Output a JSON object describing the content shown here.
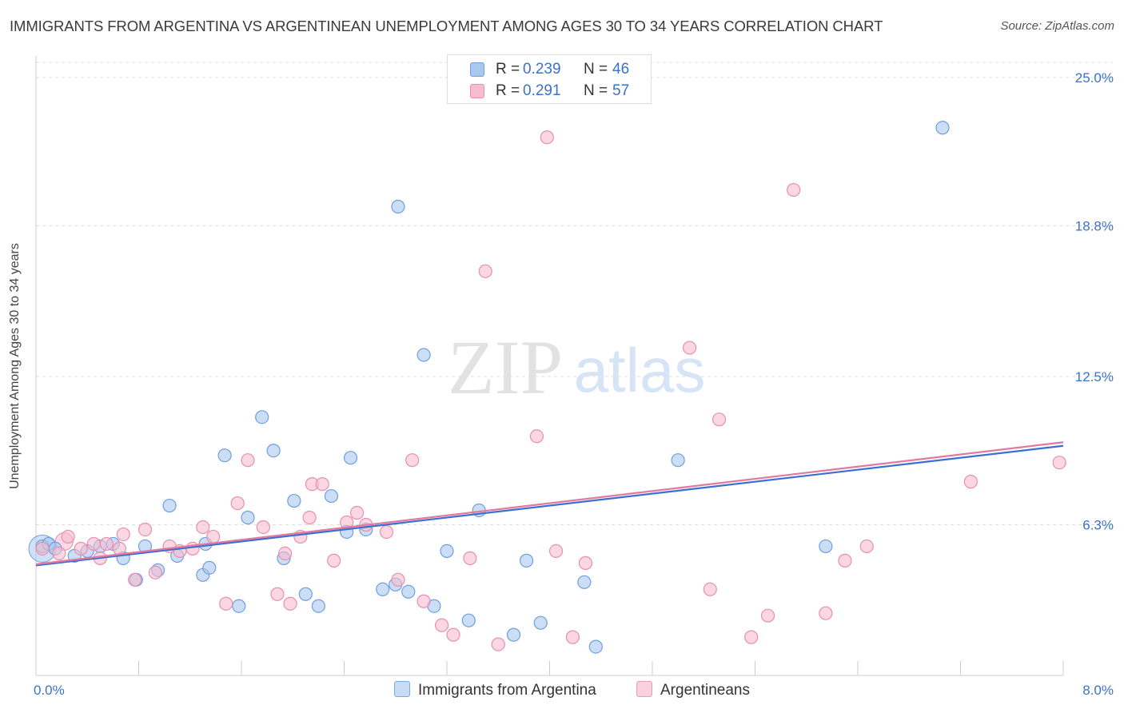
{
  "title": "IMMIGRANTS FROM ARGENTINA VS ARGENTINEAN UNEMPLOYMENT AMONG AGES 30 TO 34 YEARS CORRELATION CHART",
  "source": "Source: ZipAtlas.com",
  "watermark": {
    "zip": "ZIP",
    "atlas": "atlas"
  },
  "colors": {
    "blue_fill": "#a9c8f0",
    "blue_stroke": "#6f9fdd",
    "blue_line": "#3b6fd0",
    "pink_fill": "#f6bcd0",
    "pink_stroke": "#e88fae",
    "pink_line": "#e07aa0",
    "axis_label": "#3b72c8",
    "grid": "#dddddd"
  },
  "legend": {
    "series": [
      {
        "r_label": "R =",
        "r_value": "0.239",
        "n_label": "N =",
        "n_value": "46"
      },
      {
        "r_label": "R =",
        "r_value": "0.291",
        "n_label": "N =",
        "n_value": "57"
      }
    ]
  },
  "chart_data": {
    "type": "scatter",
    "title": "IMMIGRANTS FROM ARGENTINA VS ARGENTINEAN UNEMPLOYMENT AMONG AGES 30 TO 34 YEARS CORRELATION CHART",
    "xlabel": "",
    "ylabel": "Unemployment Among Ages 30 to 34 years",
    "xlim": [
      0,
      8
    ],
    "ylim": [
      0,
      25.9
    ],
    "x_tick_labels": [
      "0.0%",
      "8.0%"
    ],
    "y_ticks": [
      6.3,
      12.5,
      18.8,
      25.0
    ],
    "y_tick_labels": [
      "6.3%",
      "12.5%",
      "18.8%",
      "25.0%"
    ],
    "grid": true,
    "legend_position": "bottom-center",
    "series": [
      {
        "name": "Immigrants from Argentina",
        "color": "blue",
        "trend": {
          "x": [
            0,
            8
          ],
          "y": [
            4.6,
            9.6
          ]
        },
        "points": [
          [
            0.05,
            5.4
          ],
          [
            0.1,
            5.5
          ],
          [
            0.15,
            5.3
          ],
          [
            0.3,
            5.0
          ],
          [
            0.4,
            5.2
          ],
          [
            0.5,
            5.4
          ],
          [
            0.6,
            5.5
          ],
          [
            0.68,
            4.9
          ],
          [
            0.78,
            4.0
          ],
          [
            0.85,
            5.4
          ],
          [
            0.95,
            4.4
          ],
          [
            1.04,
            7.1
          ],
          [
            1.1,
            5.0
          ],
          [
            1.3,
            4.2
          ],
          [
            1.32,
            5.5
          ],
          [
            1.35,
            4.5
          ],
          [
            1.47,
            9.2
          ],
          [
            1.58,
            2.9
          ],
          [
            1.65,
            6.6
          ],
          [
            1.76,
            10.8
          ],
          [
            1.85,
            9.4
          ],
          [
            1.93,
            4.9
          ],
          [
            2.01,
            7.3
          ],
          [
            2.1,
            3.4
          ],
          [
            2.2,
            2.9
          ],
          [
            2.3,
            7.5
          ],
          [
            2.42,
            6.0
          ],
          [
            2.45,
            9.1
          ],
          [
            2.57,
            6.1
          ],
          [
            2.7,
            3.6
          ],
          [
            2.8,
            3.8
          ],
          [
            2.82,
            19.6
          ],
          [
            2.9,
            3.5
          ],
          [
            3.02,
            13.4
          ],
          [
            3.1,
            2.9
          ],
          [
            3.2,
            5.2
          ],
          [
            3.37,
            2.3
          ],
          [
            3.45,
            6.9
          ],
          [
            3.72,
            1.7
          ],
          [
            3.82,
            4.8
          ],
          [
            3.93,
            2.2
          ],
          [
            4.27,
            3.9
          ],
          [
            4.36,
            1.2
          ],
          [
            5.0,
            9.0
          ],
          [
            6.15,
            5.4
          ],
          [
            7.06,
            22.9
          ]
        ]
      },
      {
        "name": "Argentineans",
        "color": "pink",
        "trend": {
          "x": [
            0,
            8
          ],
          "y": [
            4.65,
            9.75
          ]
        },
        "points": [
          [
            0.05,
            5.3
          ],
          [
            0.18,
            5.1
          ],
          [
            0.25,
            5.8
          ],
          [
            0.35,
            5.3
          ],
          [
            0.45,
            5.5
          ],
          [
            0.5,
            4.9
          ],
          [
            0.55,
            5.5
          ],
          [
            0.65,
            5.3
          ],
          [
            0.68,
            5.9
          ],
          [
            0.77,
            4.0
          ],
          [
            0.85,
            6.1
          ],
          [
            0.93,
            4.3
          ],
          [
            1.04,
            5.4
          ],
          [
            1.12,
            5.2
          ],
          [
            1.22,
            5.3
          ],
          [
            1.3,
            6.2
          ],
          [
            1.38,
            5.8
          ],
          [
            1.48,
            3.0
          ],
          [
            1.57,
            7.2
          ],
          [
            1.65,
            9.0
          ],
          [
            1.77,
            6.2
          ],
          [
            1.88,
            3.4
          ],
          [
            1.94,
            5.1
          ],
          [
            1.98,
            3.0
          ],
          [
            2.06,
            5.8
          ],
          [
            2.13,
            6.6
          ],
          [
            2.15,
            8.0
          ],
          [
            2.23,
            8.0
          ],
          [
            2.32,
            4.8
          ],
          [
            2.42,
            6.4
          ],
          [
            2.5,
            6.8
          ],
          [
            2.57,
            6.3
          ],
          [
            2.73,
            6.0
          ],
          [
            2.82,
            4.0
          ],
          [
            2.93,
            9.0
          ],
          [
            3.02,
            3.1
          ],
          [
            3.16,
            2.1
          ],
          [
            3.25,
            1.7
          ],
          [
            3.38,
            4.9
          ],
          [
            3.5,
            16.9
          ],
          [
            3.6,
            1.3
          ],
          [
            3.9,
            10.0
          ],
          [
            3.98,
            22.5
          ],
          [
            4.05,
            5.2
          ],
          [
            4.18,
            1.6
          ],
          [
            4.28,
            4.7
          ],
          [
            5.09,
            13.7
          ],
          [
            5.25,
            3.6
          ],
          [
            5.32,
            10.7
          ],
          [
            5.57,
            1.6
          ],
          [
            5.7,
            2.5
          ],
          [
            5.9,
            20.3
          ],
          [
            6.15,
            2.6
          ],
          [
            6.3,
            4.8
          ],
          [
            6.47,
            5.4
          ],
          [
            7.28,
            8.1
          ],
          [
            7.97,
            8.9
          ]
        ]
      }
    ]
  },
  "bottom_legend": [
    {
      "label": "Immigrants from Argentina"
    },
    {
      "label": "Argentineans"
    }
  ]
}
